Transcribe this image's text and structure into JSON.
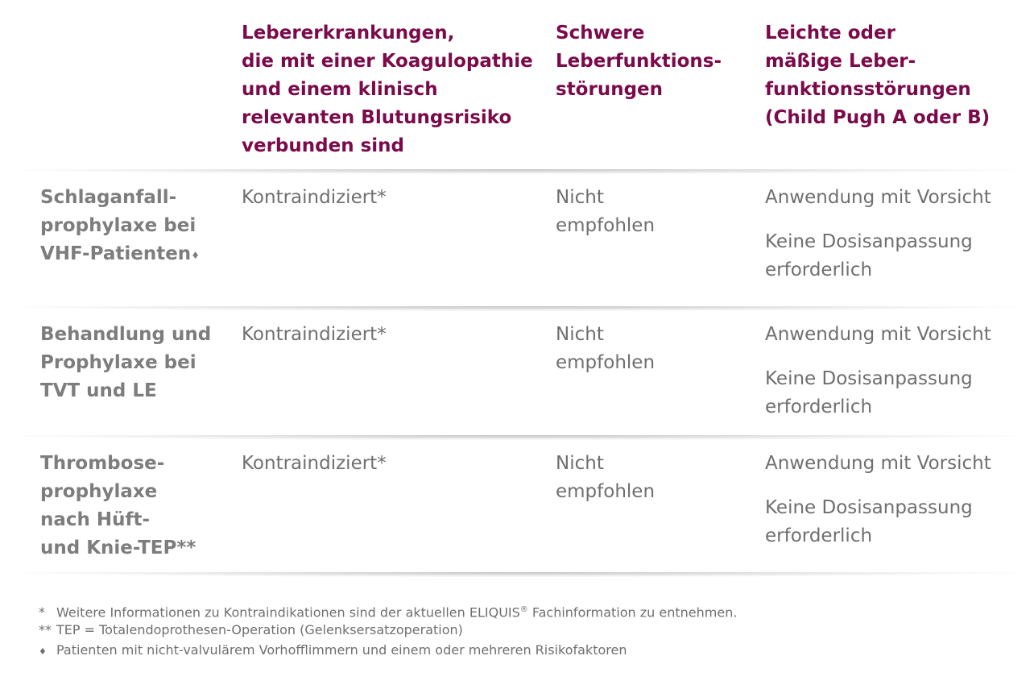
{
  "headers": {
    "col1": "",
    "col2": "Lebererkrankungen,\ndie mit einer Koagulopathie\nund einem klinisch\nrelevanten Blutungsrisiko\nverbunden sind",
    "col3": "Schwere\nLeberfunktions-\nstörungen",
    "col4": "Leichte oder\nmäßige Leber-\nfunktionsstörungen\n(Child Pugh A oder B)"
  },
  "rows": [
    {
      "label": "Schlaganfall-\nprophylaxe bei\nVHF-Patienten",
      "label_marker": "♦",
      "c2": "Kontraindiziert*",
      "c3": "Nicht\nempfohlen",
      "c4a": "Anwendung mit Vorsicht",
      "c4b": "Keine Dosisanpassung\nerforderlich"
    },
    {
      "label": "Behandlung und\nProphylaxe bei\nTVT und LE",
      "label_marker": "",
      "c2": "Kontraindiziert*",
      "c3": "Nicht\nempfohlen",
      "c4a": "Anwendung mit Vorsicht",
      "c4b": "Keine Dosisanpassung\nerforderlich"
    },
    {
      "label": "Thrombose-\nprophylaxe\nnach Hüft-\nund Knie-TEP**",
      "label_marker": "",
      "c2": "Kontraindiziert*",
      "c3": "Nicht\nempfohlen",
      "c4a": "Anwendung mit Vorsicht",
      "c4b": "Keine Dosisanpassung\nerforderlich"
    }
  ],
  "footnotes": [
    {
      "marker": "*",
      "text_before": "Weitere Informationen zu Kontraindikationen sind der aktuellen ELIQUIS",
      "sup": "®",
      "text_after": " Fachinformation zu entnehmen."
    },
    {
      "marker": "**",
      "text_before": "TEP = Totalendoprothesen-Operation (Gelenksersatzoperation)",
      "sup": "",
      "text_after": ""
    },
    {
      "marker": "♦",
      "text_before": "Patienten mit nicht-valvulärem Vorhofflimmern und einem oder mehreren Risikofaktoren",
      "sup": "",
      "text_after": ""
    }
  ],
  "colors": {
    "header": "#7a0a4a",
    "row_label": "#7d7d7d",
    "body_text": "#6f6f6f"
  }
}
